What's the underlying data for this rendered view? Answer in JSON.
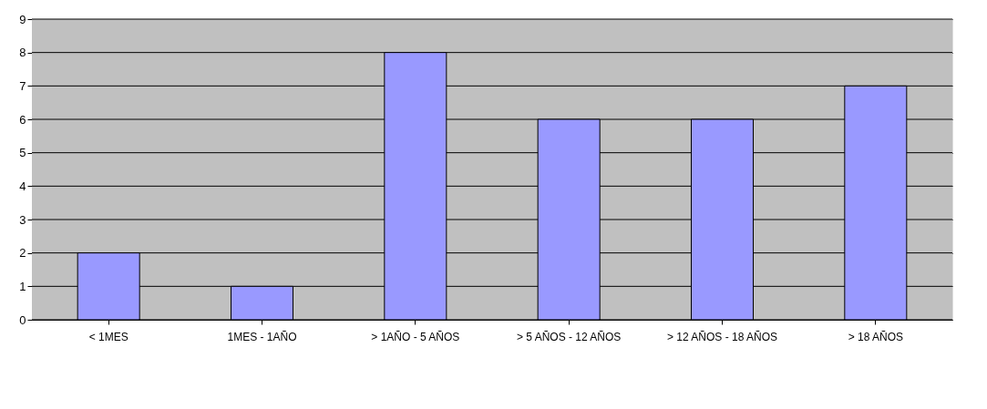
{
  "chart_data": {
    "type": "bar",
    "categories": [
      "< 1MES",
      "1MES - 1AÑO",
      "> 1AÑO - 5 AÑOS",
      "> 5 AÑOS - 12 AÑOS",
      "> 12 AÑOS - 18 AÑOS",
      "> 18 AÑOS"
    ],
    "values": [
      2,
      1,
      8,
      6,
      6,
      7
    ],
    "color": "#9999ff",
    "ylim": [
      0,
      9
    ],
    "yticks": [
      0,
      1,
      2,
      3,
      4,
      5,
      6,
      7,
      8,
      9
    ],
    "grid": "y"
  }
}
